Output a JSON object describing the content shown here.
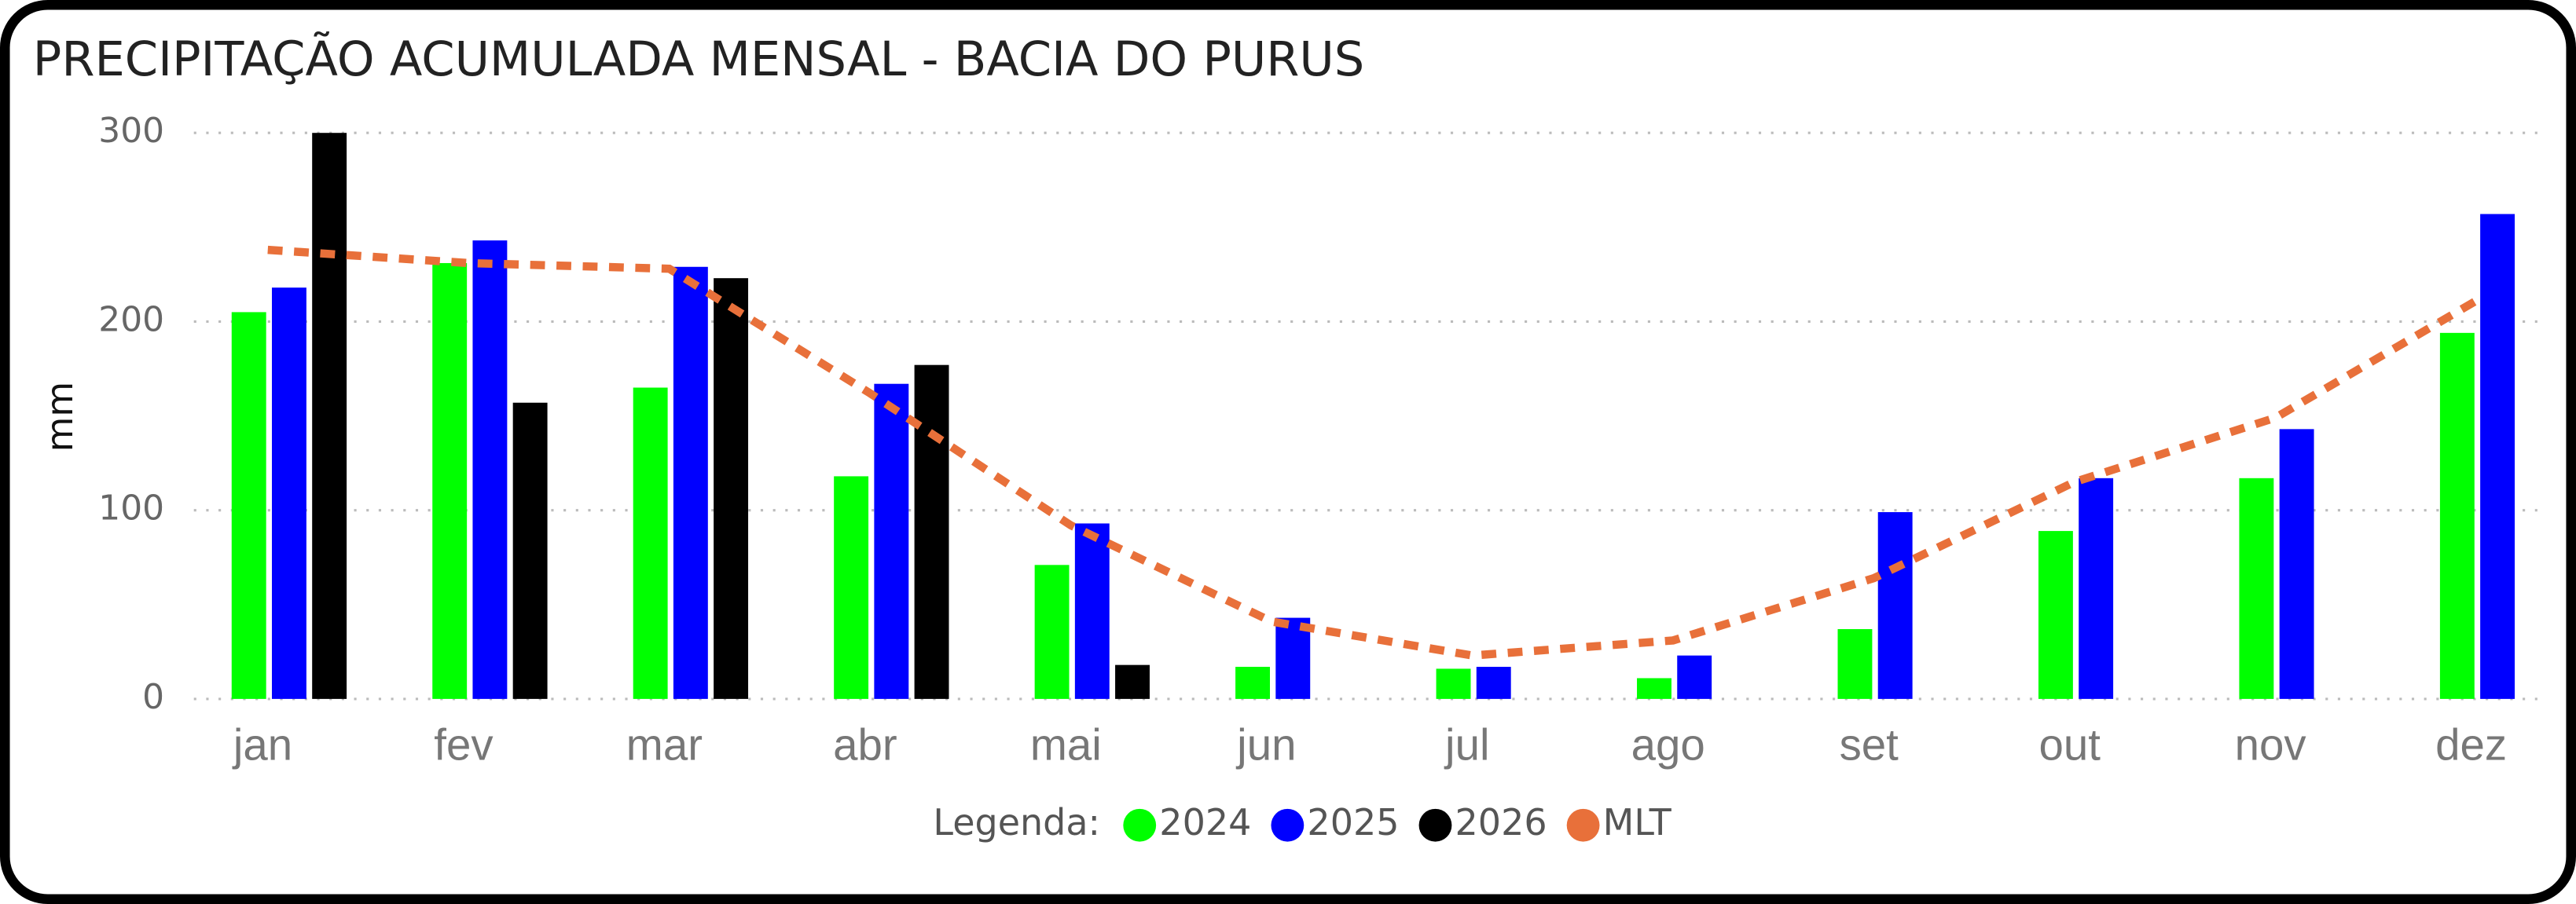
{
  "chart_data": {
    "type": "bar",
    "title": "PRECIPITAÇÃO ACUMULADA MENSAL - BACIA DO PURUS",
    "y_label": "mm",
    "legend_title": "Legenda:",
    "categories": [
      "jan",
      "fev",
      "mar",
      "abr",
      "mai",
      "jun",
      "jul",
      "ago",
      "set",
      "out",
      "nov",
      "dez"
    ],
    "series": [
      {
        "name": "2024",
        "color": "#00ff00",
        "type": "bar",
        "values": [
          205,
          231,
          165,
          118,
          71,
          17,
          16,
          11,
          37,
          89,
          117,
          194
        ]
      },
      {
        "name": "2025",
        "color": "#0000ff",
        "type": "bar",
        "values": [
          218,
          243,
          229,
          167,
          93,
          43,
          17,
          23,
          99,
          117,
          143,
          257
        ]
      },
      {
        "name": "2026",
        "color": "#000000",
        "type": "bar",
        "values": [
          300,
          157,
          223,
          177,
          18,
          null,
          null,
          null,
          null,
          null,
          null,
          null
        ]
      },
      {
        "name": "MLT",
        "color": "#e8703a",
        "type": "line",
        "values": [
          238,
          231,
          228,
          162,
          92,
          41,
          23,
          31,
          64,
          115,
          149,
          211
        ]
      }
    ],
    "ylim": [
      0,
      300
    ],
    "yticks": [
      0,
      100,
      200,
      300
    ],
    "grid": true,
    "legend_position": "bottom"
  }
}
